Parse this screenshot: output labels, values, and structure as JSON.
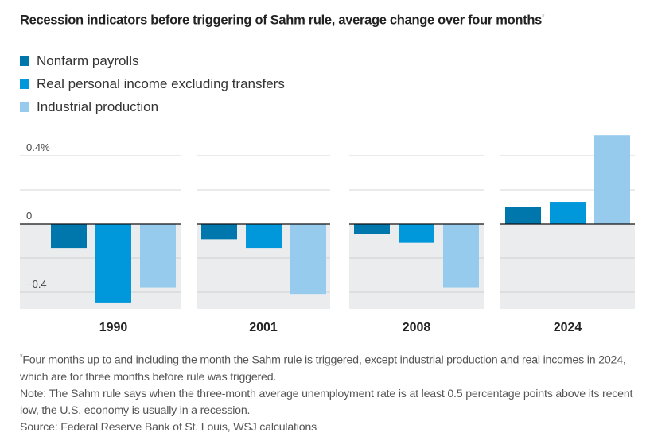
{
  "title": "Recession indicators before triggering of Sahm rule, average change over four months",
  "title_marker": "*",
  "colors": {
    "nonfarm": "#0077ac",
    "income": "#0098da",
    "industrial": "#97cbee",
    "negative_bg": "#ebecee",
    "gridline": "#dddddd"
  },
  "chart_data": {
    "type": "bar",
    "title": "Recession indicators before triggering of Sahm rule, average change over four months",
    "categories": [
      "1990",
      "2001",
      "2008",
      "2024"
    ],
    "series": [
      {
        "name": "Nonfarm payrolls",
        "values": [
          -0.14,
          -0.09,
          -0.06,
          0.1
        ]
      },
      {
        "name": "Real personal income excluding transfers",
        "values": [
          -0.46,
          -0.14,
          -0.11,
          0.13
        ]
      },
      {
        "name": "Industrial production",
        "values": [
          -0.37,
          -0.41,
          -0.37,
          0.52
        ]
      }
    ],
    "ylim": [
      -0.5,
      0.52
    ],
    "yticks": [
      0.4,
      0.2,
      0,
      -0.2,
      -0.4
    ],
    "ytick_labels": [
      "0.4%",
      "",
      "0",
      "",
      "−0.4"
    ],
    "grid": true,
    "legend": "top-left",
    "xlabel": "",
    "ylabel": ""
  },
  "notes": {
    "footnote_marker": "*",
    "footnote": "Four months up to and including the month the Sahm rule is triggered, except industrial production and real incomes in 2024, which are for three months before rule was triggered.",
    "note": "Note: The Sahm rule says when the three-month average unemployment rate is at least 0.5 percentage points above its recent low, the U.S. economy is usually in a recession.",
    "source": "Source: Federal Reserve Bank of St. Louis, WSJ calculations"
  }
}
